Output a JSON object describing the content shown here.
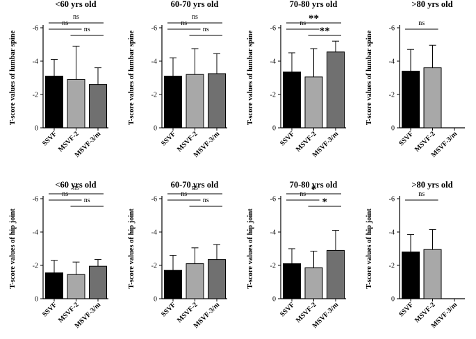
{
  "figure": {
    "categories": [
      "SSVF",
      "MSVF-2",
      "MSVF-3/m"
    ],
    "bar_colors": [
      "#000000",
      "#a8a8a8",
      "#707070"
    ],
    "y_ticks": [
      "-6",
      "-4",
      "-2",
      "0"
    ],
    "axis_color": "#000000"
  },
  "chart_data": [
    {
      "type": "bar",
      "title": "<60 yrs old",
      "ylabel": "T-score values of lumbar spine",
      "categories": [
        "SSVF",
        "MSVF-2",
        "MSVF-3/m"
      ],
      "ylim": [
        0,
        -6
      ],
      "y_inverted": true,
      "values": [
        -3.1,
        -2.9,
        -2.6
      ],
      "errors": [
        1.0,
        2.0,
        1.0
      ],
      "comparisons": [
        {
          "from": 0,
          "to": 1,
          "label": "ns",
          "level": 1
        },
        {
          "from": 1,
          "to": 2,
          "label": "ns",
          "level": 2
        },
        {
          "from": 0,
          "to": 2,
          "label": "ns",
          "level": 3
        }
      ]
    },
    {
      "type": "bar",
      "title": "60-70 yrs old",
      "ylabel": "T-score values of lumbar spine",
      "categories": [
        "SSVF",
        "MSVF-2",
        "MSVF-3/m"
      ],
      "ylim": [
        0,
        -6
      ],
      "y_inverted": true,
      "values": [
        -3.1,
        -3.2,
        -3.25
      ],
      "errors": [
        1.1,
        1.55,
        1.2
      ],
      "comparisons": [
        {
          "from": 0,
          "to": 1,
          "label": "ns",
          "level": 1
        },
        {
          "from": 1,
          "to": 2,
          "label": "ns",
          "level": 2
        },
        {
          "from": 0,
          "to": 2,
          "label": "ns",
          "level": 3
        }
      ]
    },
    {
      "type": "bar",
      "title": "70-80 yrs old",
      "ylabel": "T-score values of lumbar spine",
      "categories": [
        "SSVF",
        "MSVF-2",
        "MSVF-3/m"
      ],
      "ylim": [
        0,
        -6
      ],
      "y_inverted": true,
      "values": [
        -3.35,
        -3.05,
        -4.55
      ],
      "errors": [
        1.15,
        1.7,
        0.65
      ],
      "comparisons": [
        {
          "from": 0,
          "to": 1,
          "label": "ns",
          "level": 1
        },
        {
          "from": 1,
          "to": 2,
          "label": "**",
          "level": 2
        },
        {
          "from": 0,
          "to": 2,
          "label": "**",
          "level": 3
        }
      ]
    },
    {
      "type": "bar",
      "title": ">80 yrs old",
      "ylabel": "T-score values of lumbar spine",
      "categories": [
        "SSVF",
        "MSVF-2",
        "MSVF-3/m"
      ],
      "ylim": [
        0,
        -6
      ],
      "y_inverted": true,
      "values": [
        -3.4,
        -3.6,
        null
      ],
      "errors": [
        1.3,
        1.35,
        null
      ],
      "comparisons": [
        {
          "from": 0,
          "to": 1,
          "label": "ns",
          "level": 3
        }
      ]
    },
    {
      "type": "bar",
      "title": "<60 yrs old",
      "ylabel": "T-score values of hip joint",
      "categories": [
        "SSVF",
        "MSVF-2",
        "MSVF-3/m"
      ],
      "ylim": [
        0,
        -6
      ],
      "y_inverted": true,
      "values": [
        -1.55,
        -1.45,
        -1.95
      ],
      "errors": [
        0.75,
        0.75,
        0.4
      ],
      "comparisons": [
        {
          "from": 0,
          "to": 1,
          "label": "ns",
          "level": 1
        },
        {
          "from": 1,
          "to": 2,
          "label": "ns",
          "level": 2
        },
        {
          "from": 0,
          "to": 2,
          "label": "ns",
          "level": 3
        }
      ]
    },
    {
      "type": "bar",
      "title": "60-70 yrs old",
      "ylabel": "T-score values of hip joint",
      "categories": [
        "SSVF",
        "MSVF-2",
        "MSVF-3/m"
      ],
      "ylim": [
        0,
        -6
      ],
      "y_inverted": true,
      "values": [
        -1.7,
        -2.1,
        -2.35
      ],
      "errors": [
        0.9,
        0.95,
        0.9
      ],
      "comparisons": [
        {
          "from": 0,
          "to": 1,
          "label": "ns",
          "level": 1
        },
        {
          "from": 1,
          "to": 2,
          "label": "ns",
          "level": 2
        },
        {
          "from": 0,
          "to": 2,
          "label": "ns",
          "level": 3
        }
      ]
    },
    {
      "type": "bar",
      "title": "70-80 yrs old",
      "ylabel": "T-score values of hip joint",
      "categories": [
        "SSVF",
        "MSVF-2",
        "MSVF-3/m"
      ],
      "ylim": [
        0,
        -6
      ],
      "y_inverted": true,
      "values": [
        -2.1,
        -1.85,
        -2.9
      ],
      "errors": [
        0.9,
        1.0,
        1.2
      ],
      "comparisons": [
        {
          "from": 0,
          "to": 1,
          "label": "ns",
          "level": 1
        },
        {
          "from": 1,
          "to": 2,
          "label": "*",
          "level": 2
        },
        {
          "from": 0,
          "to": 2,
          "label": "*",
          "level": 3
        }
      ]
    },
    {
      "type": "bar",
      "title": ">80 yrs old",
      "ylabel": "T-score values of hip joint",
      "categories": [
        "SSVF",
        "MSVF-2",
        "MSVF-3/m"
      ],
      "ylim": [
        0,
        -6
      ],
      "y_inverted": true,
      "values": [
        -2.8,
        -2.95,
        null
      ],
      "errors": [
        1.05,
        1.2,
        null
      ],
      "comparisons": [
        {
          "from": 0,
          "to": 1,
          "label": "ns",
          "level": 3
        }
      ]
    }
  ]
}
